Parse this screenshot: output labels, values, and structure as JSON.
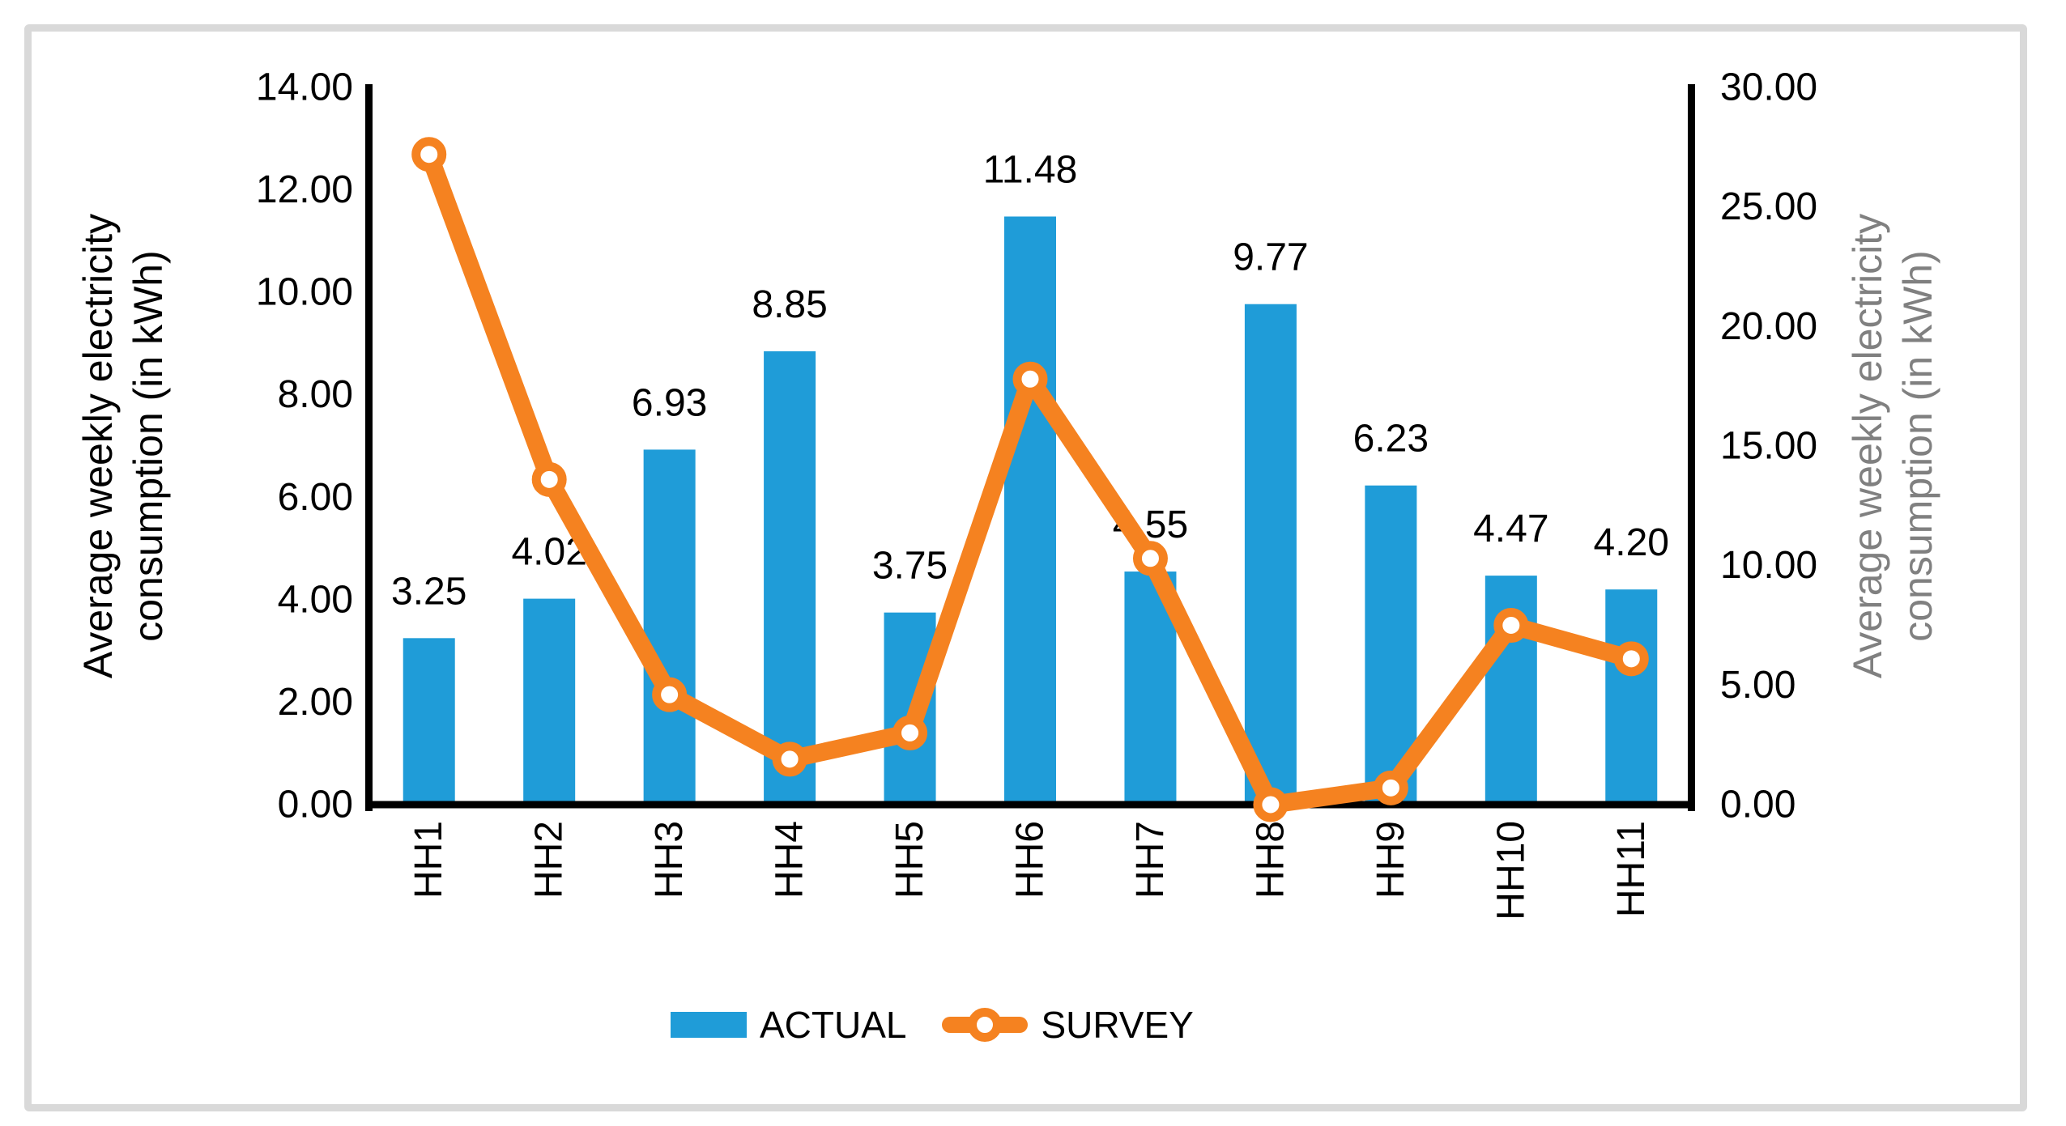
{
  "legend": {
    "actual_label": "ACTUAL",
    "survey_label": "SURVEY"
  },
  "left_axis_title": {
    "line1": "Average weekly electricity",
    "line2": "consumption (in kWh)"
  },
  "right_axis_title": {
    "line1": "Average weekly electricity",
    "line2": "consumption (in kWh)"
  },
  "chart_data": {
    "type": "combo-bar-line",
    "categories": [
      "HH1",
      "HH2",
      "HH3",
      "HH4",
      "HH5",
      "HH6",
      "HH7",
      "HH8",
      "HH9",
      "HH10",
      "HH11"
    ],
    "series": [
      {
        "name": "ACTUAL",
        "type": "bar",
        "axis": "left",
        "color": "#1F9CD8",
        "values": [
          3.25,
          4.02,
          6.93,
          8.85,
          3.75,
          11.48,
          4.55,
          9.77,
          6.23,
          4.47,
          4.2
        ],
        "value_labels": [
          "3.25",
          "4.02",
          "6.93",
          "8.85",
          "3.75",
          "11.48",
          "4.55",
          "9.77",
          "6.23",
          "4.47",
          "4.20"
        ]
      },
      {
        "name": "SURVEY",
        "type": "line",
        "axis": "right",
        "color": "#F58220",
        "values": [
          27.2,
          13.6,
          4.6,
          1.9,
          3.0,
          17.8,
          10.3,
          0.0,
          0.7,
          7.5,
          6.1
        ]
      }
    ],
    "left_axis": {
      "min": 0,
      "max": 14,
      "tick_labels": [
        "0.00",
        "2.00",
        "4.00",
        "6.00",
        "8.00",
        "10.00",
        "12.00",
        "14.00"
      ],
      "title": "Average weekly electricity consumption (in kWh)"
    },
    "right_axis": {
      "min": 0,
      "max": 30,
      "tick_labels": [
        "0.00",
        "5.00",
        "10.00",
        "15.00",
        "20.00",
        "25.00",
        "30.00"
      ],
      "title": "Average weekly electricity consumption (in kWh)"
    },
    "colors": {
      "bar": "#1F9CD8",
      "line": "#F58220",
      "axis": "#000000",
      "frame": "#D9D9D9",
      "right_title": "#808080",
      "text": "#000000"
    },
    "legend_position": "bottom",
    "grid": "off"
  }
}
